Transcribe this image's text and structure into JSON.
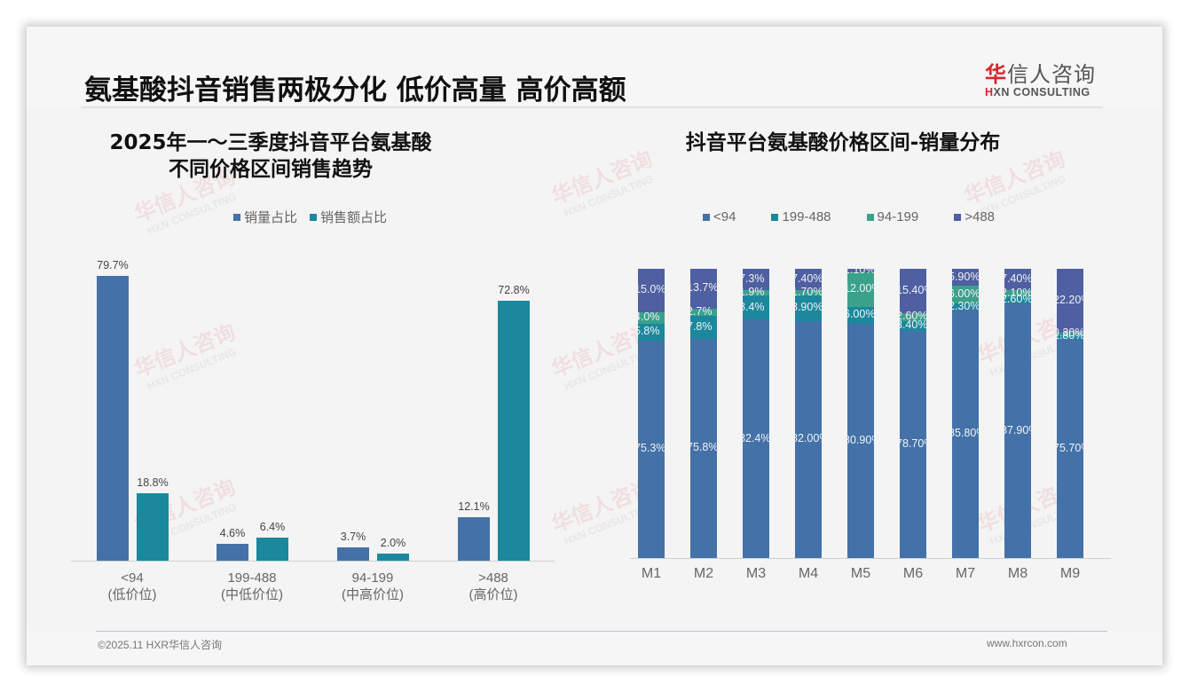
{
  "header": {
    "title": "氨基酸抖音销售两极分化 低价高量 高价高额",
    "logo_cn_first": "华",
    "logo_cn_rest": "信人咨询",
    "logo_en_first": "H",
    "logo_en_rest": "XN CONSULTING"
  },
  "watermark": {
    "cn": "华信人咨询",
    "en": "HXN CONSULTING"
  },
  "left_chart": {
    "title_line1": "2025年一～三季度抖音平台氨基酸",
    "title_line2": "不同价格区间销售趋势",
    "legend": [
      {
        "label": "销量占比",
        "color": "#4472a8"
      },
      {
        "label": "销售额占比",
        "color": "#1b889e"
      }
    ],
    "categories": [
      {
        "range": "<94",
        "tier": "(低价位)",
        "volume": "79.7%",
        "sales": "18.8%"
      },
      {
        "range": "199-488",
        "tier": "(中低价位)",
        "volume": "4.6%",
        "sales": "6.4%"
      },
      {
        "range": "94-199",
        "tier": "(中高价位)",
        "volume": "3.7%",
        "sales": "2.0%"
      },
      {
        "range": ">488",
        "tier": "(高价位)",
        "volume": "12.1%",
        "sales": "72.8%"
      }
    ]
  },
  "right_chart": {
    "title": "抖音平台氨基酸价格区间-销量分布",
    "legend": [
      {
        "label": "<94",
        "color": "#4472a8"
      },
      {
        "label": "199-488",
        "color": "#1b889e"
      },
      {
        "label": "94-199",
        "color": "#3aa18a"
      },
      {
        "label": ">488",
        "color": "#4e5fa2"
      }
    ],
    "months": [
      "M1",
      "M2",
      "M3",
      "M4",
      "M5",
      "M6",
      "M7",
      "M8",
      "M9"
    ],
    "labels": {
      "lt94": [
        "75.3%",
        "75.8%",
        "82.4%",
        "82.00%",
        "80.90%",
        "78.70%",
        "85.80%",
        "87.90%",
        "75.70%"
      ],
      "r199_488": [
        "5.8%",
        "7.8%",
        "8.4%",
        "8.90%",
        "6.00%",
        "3.40%",
        "2.30%",
        "2.60%",
        "1.80%"
      ],
      "r94_199": [
        "4.0%",
        "2.7%",
        "1.9%",
        "1.70%",
        "12.00%",
        "2.60%",
        "6.00%",
        "2.10%",
        "0.30%"
      ],
      "gt488": [
        "15.0%",
        "13.7%",
        "7.3%",
        "7.40%",
        "1.10%",
        "15.40%",
        "5.90%",
        "7.40%",
        "22.20%"
      ]
    }
  },
  "footer": {
    "copyright": "©2025.11 HXR华信人咨询",
    "website": "www.hxrcon.com"
  },
  "chart_data": [
    {
      "type": "bar",
      "title": "2025年一～三季度抖音平台氨基酸不同价格区间销售趋势",
      "categories": [
        "<94 (低价位)",
        "199-488 (中低价位)",
        "94-199 (中高价位)",
        ">488 (高价位)"
      ],
      "series": [
        {
          "name": "销量占比",
          "values": [
            79.7,
            4.6,
            3.7,
            12.1
          ]
        },
        {
          "name": "销售额占比",
          "values": [
            18.8,
            6.4,
            2.0,
            72.8
          ]
        }
      ],
      "xlabel": "",
      "ylabel": "",
      "unit": "%",
      "legend_position": "top",
      "grid": false
    },
    {
      "type": "bar",
      "stacked": true,
      "title": "抖音平台氨基酸价格区间-销量分布",
      "categories": [
        "M1",
        "M2",
        "M3",
        "M4",
        "M5",
        "M6",
        "M7",
        "M8",
        "M9"
      ],
      "series": [
        {
          "name": "<94",
          "values": [
            75.3,
            75.8,
            82.4,
            82.0,
            80.9,
            78.7,
            85.8,
            87.9,
            75.7
          ]
        },
        {
          "name": "199-488",
          "values": [
            5.8,
            7.8,
            8.4,
            8.9,
            6.0,
            3.4,
            2.3,
            2.6,
            1.8
          ]
        },
        {
          "name": "94-199",
          "values": [
            4.0,
            2.7,
            1.9,
            1.7,
            12.0,
            2.6,
            6.0,
            2.1,
            0.3
          ]
        },
        {
          "name": ">488",
          "values": [
            15.0,
            13.7,
            7.3,
            7.4,
            1.1,
            15.4,
            5.9,
            7.4,
            22.2
          ]
        }
      ],
      "unit": "%",
      "ylim": [
        0,
        100
      ],
      "legend_position": "top",
      "grid": false
    }
  ]
}
